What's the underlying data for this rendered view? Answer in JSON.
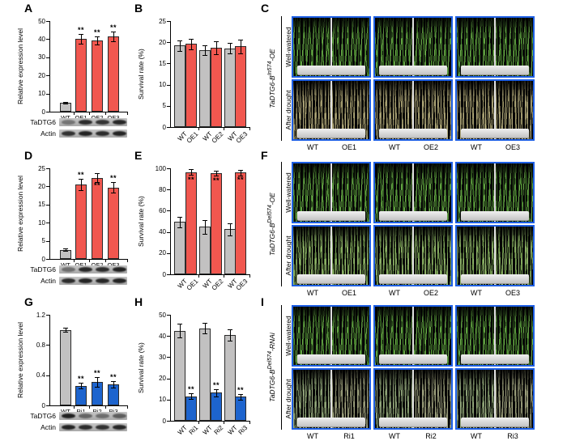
{
  "letters": {
    "A": "A",
    "B": "B",
    "C": "C",
    "D": "D",
    "E": "E",
    "F": "F",
    "G": "G",
    "H": "H",
    "I": "I"
  },
  "colors": {
    "red": "#F1574F",
    "gray": "#C2C1C1",
    "blue": "#1D64CE",
    "bar_outline": "#2b2b2b",
    "photo_border": "#1E5FE4",
    "axis": "#000000",
    "tray": "#d9d9d9",
    "photo_bg": "#060606",
    "plant_styles": {
      "lush": [
        "#4e8f33",
        "#6fae4e",
        "#335f1e"
      ],
      "dry": [
        "#968f63",
        "#6e6847",
        "#b3ab7e"
      ],
      "semi": [
        "#7aa155",
        "#587d38",
        "#95b570"
      ],
      "semiGray": [
        "#7d936a",
        "#5c7048",
        "#9aab82"
      ],
      "dryGray": [
        "#8a8f6e",
        "#65674c",
        "#a3a583"
      ]
    }
  },
  "chart_data": [
    {
      "panel": "A",
      "type": "bar",
      "title": "",
      "xlabel": "",
      "ylabel": "Relative expression level",
      "ylim": [
        0,
        50
      ],
      "yticks": [
        0,
        10,
        20,
        30,
        40,
        50
      ],
      "grid": false,
      "legend": "none",
      "categories": [
        "WT",
        "OE1",
        "OE2",
        "OE3"
      ],
      "values": [
        4.8,
        40.2,
        39.4,
        41.5
      ],
      "errors": [
        0.5,
        2.8,
        2.3,
        2.8
      ],
      "sig": [
        "",
        "**",
        "**",
        "**"
      ],
      "bar_colors": [
        "gray",
        "red",
        "red",
        "red"
      ]
    },
    {
      "panel": "B",
      "type": "bar",
      "title": "",
      "xlabel": "",
      "ylabel": "Survival rate (%)",
      "ylim": [
        0,
        25
      ],
      "yticks": [
        0,
        5,
        10,
        15,
        20,
        25
      ],
      "grid": false,
      "legend": "none",
      "categories": [
        "WT",
        "OE1",
        "WT",
        "OE2",
        "WT",
        "OE3"
      ],
      "values": [
        19.2,
        19.6,
        18.1,
        18.7,
        18.6,
        19.0
      ],
      "errors": [
        1.3,
        1.2,
        1.2,
        1.5,
        1.2,
        1.7
      ],
      "sig": [
        "",
        "",
        "",
        "",
        "",
        ""
      ],
      "bar_colors": [
        "gray",
        "red",
        "gray",
        "red",
        "gray",
        "red"
      ]
    },
    {
      "panel": "D",
      "type": "bar",
      "title": "",
      "xlabel": "",
      "ylabel": "Relative expression level",
      "ylim": [
        0,
        25
      ],
      "yticks": [
        0,
        5,
        10,
        15,
        20,
        25
      ],
      "grid": false,
      "legend": "none",
      "categories": [
        "WT",
        "OE1",
        "OE2",
        "OE3"
      ],
      "values": [
        2.5,
        20.6,
        22.4,
        19.7
      ],
      "errors": [
        0.3,
        1.6,
        1.2,
        1.4
      ],
      "sig": [
        "",
        "**",
        "**",
        "**"
      ],
      "bar_colors": [
        "gray",
        "red",
        "red",
        "red"
      ]
    },
    {
      "panel": "E",
      "type": "bar",
      "title": "",
      "xlabel": "",
      "ylabel": "Survival rate (%)",
      "ylim": [
        0,
        100
      ],
      "yticks": [
        0,
        20,
        40,
        60,
        80,
        100
      ],
      "grid": false,
      "legend": "none",
      "categories": [
        "WT",
        "OE1",
        "WT",
        "OE2",
        "WT",
        "OE3"
      ],
      "values": [
        49.5,
        96.5,
        45.0,
        95.5,
        42.5,
        96.0
      ],
      "errors": [
        5.0,
        2.5,
        6.5,
        2.5,
        5.5,
        2.5
      ],
      "sig": [
        "",
        "**",
        "",
        "**",
        "",
        "**"
      ],
      "bar_colors": [
        "gray",
        "red",
        "gray",
        "red",
        "gray",
        "red"
      ]
    },
    {
      "panel": "G",
      "type": "bar",
      "title": "",
      "xlabel": "",
      "ylabel": "Relative expression level",
      "ylim": [
        0,
        1.2
      ],
      "yticks": [
        0,
        0.4,
        0.8,
        1.2
      ],
      "grid": false,
      "legend": "none",
      "categories": [
        "WT",
        "Ri1",
        "Ri2",
        "Ri3"
      ],
      "values": [
        1.0,
        0.26,
        0.31,
        0.28
      ],
      "errors": [
        0.03,
        0.04,
        0.06,
        0.04
      ],
      "sig": [
        "",
        "**",
        "**",
        "**"
      ],
      "bar_colors": [
        "gray",
        "blue",
        "blue",
        "blue"
      ]
    },
    {
      "panel": "H",
      "type": "bar",
      "title": "",
      "xlabel": "",
      "ylabel": "Survival rate (%)",
      "ylim": [
        0,
        50
      ],
      "yticks": [
        0,
        10,
        20,
        30,
        40,
        50
      ],
      "grid": false,
      "legend": "none",
      "categories": [
        "WT",
        "Ri1",
        "WT",
        "Ri2",
        "WT",
        "Ri3"
      ],
      "values": [
        42.5,
        11.5,
        43.7,
        13.2,
        40.5,
        11.3
      ],
      "errors": [
        3.2,
        1.3,
        2.6,
        1.6,
        2.6,
        1.4
      ],
      "sig": [
        "",
        "**",
        "",
        "**",
        "",
        "**"
      ],
      "bar_colors": [
        "gray",
        "blue",
        "gray",
        "blue",
        "gray",
        "blue"
      ]
    }
  ],
  "blots": [
    {
      "panel": "A",
      "rows": [
        {
          "label": "TaDTG6",
          "bands": [
            0.4,
            0.85,
            0.8,
            0.88
          ]
        },
        {
          "label": "Actin",
          "bands": [
            0.82,
            0.9,
            0.85,
            0.9
          ]
        }
      ]
    },
    {
      "panel": "D",
      "rows": [
        {
          "label": "TaDTG6",
          "bands": [
            0.45,
            0.88,
            0.85,
            0.92
          ]
        },
        {
          "label": "Actin",
          "bands": [
            0.85,
            0.9,
            0.88,
            0.9
          ]
        }
      ]
    },
    {
      "panel": "G",
      "rows": [
        {
          "label": "TaDTG6",
          "bands": [
            0.92,
            0.5,
            0.45,
            0.55
          ]
        },
        {
          "label": "Actin",
          "bands": [
            0.9,
            0.85,
            0.82,
            0.88
          ]
        }
      ]
    }
  ],
  "photo_panels": [
    {
      "panel": "C",
      "title": {
        "gene": "TaDTG6-B",
        "sup": "In574",
        "suffix": "-OE"
      },
      "row_labels": [
        "Well-watered",
        "After drought"
      ],
      "col_labels": [
        [
          "WT",
          "OE1"
        ],
        [
          "WT",
          "OE2"
        ],
        [
          "WT",
          "OE3"
        ]
      ],
      "top_styles": [
        "lush",
        "lush"
      ],
      "bottom_styles": [
        "dry",
        "dry"
      ]
    },
    {
      "panel": "F",
      "title": {
        "gene": "TaDTG6-B",
        "sup": "Del574",
        "suffix": "-OE"
      },
      "row_labels": [
        "Well-watered",
        "After drought"
      ],
      "col_labels": [
        [
          "WT",
          "OE1"
        ],
        [
          "WT",
          "OE2"
        ],
        [
          "WT",
          "OE3"
        ]
      ],
      "top_styles": [
        "lush",
        "lush"
      ],
      "bottom_styles": [
        "semi",
        "semi"
      ]
    },
    {
      "panel": "I",
      "title": {
        "gene": "TaDTG6-B",
        "sup": "Del574",
        "suffix": "-RNAi"
      },
      "row_labels": [
        "Well-watered",
        "After drought"
      ],
      "col_labels": [
        [
          "WT",
          "Ri1"
        ],
        [
          "WT",
          "Ri2"
        ],
        [
          "WT",
          "Ri3"
        ]
      ],
      "top_styles": [
        "lush",
        "lush"
      ],
      "bottom_styles": [
        "semiGray",
        "dryGray"
      ]
    }
  ]
}
